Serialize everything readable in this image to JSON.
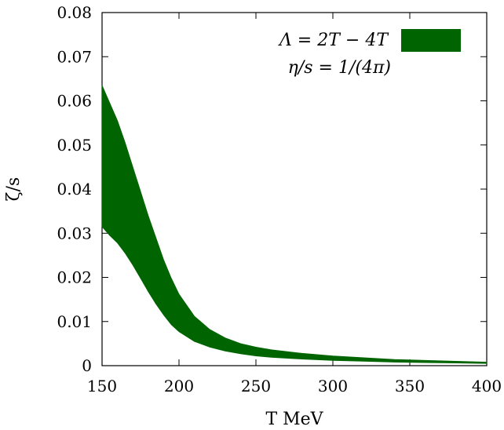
{
  "chart_data": {
    "type": "area",
    "xlabel": "T MeV",
    "ylabel": "ζ/s",
    "xlim": [
      150,
      400
    ],
    "ylim": [
      0,
      0.08
    ],
    "x_ticks": [
      "150",
      "200",
      "250",
      "300",
      "350",
      "400"
    ],
    "y_ticks": [
      "0",
      "0.01",
      "0.02",
      "0.03",
      "0.04",
      "0.05",
      "0.06",
      "0.07",
      "0.08"
    ],
    "grid": false,
    "legend_position": "top-right",
    "series": [
      {
        "name": "Λ = 2T − 4T",
        "color": "#006400",
        "x": [
          150,
          155,
          160,
          165,
          170,
          175,
          180,
          185,
          190,
          195,
          200,
          210,
          220,
          230,
          240,
          250,
          260,
          280,
          300,
          320,
          340,
          360,
          380,
          400
        ],
        "lower": [
          0.0315,
          0.0295,
          0.0278,
          0.0255,
          0.0228,
          0.0198,
          0.0168,
          0.014,
          0.0115,
          0.0093,
          0.0077,
          0.0055,
          0.0042,
          0.0033,
          0.0027,
          0.0022,
          0.0019,
          0.0015,
          0.0012,
          0.001,
          0.0008,
          0.0007,
          0.0006,
          0.0005
        ],
        "upper": [
          0.0635,
          0.0595,
          0.0555,
          0.0505,
          0.045,
          0.0395,
          0.034,
          0.029,
          0.024,
          0.0198,
          0.0162,
          0.0112,
          0.0082,
          0.0063,
          0.005,
          0.0042,
          0.0036,
          0.0028,
          0.0022,
          0.0018,
          0.0014,
          0.0012,
          0.001,
          0.0008
        ]
      }
    ],
    "annotations": [
      "η/s = 1/(4π)"
    ]
  }
}
